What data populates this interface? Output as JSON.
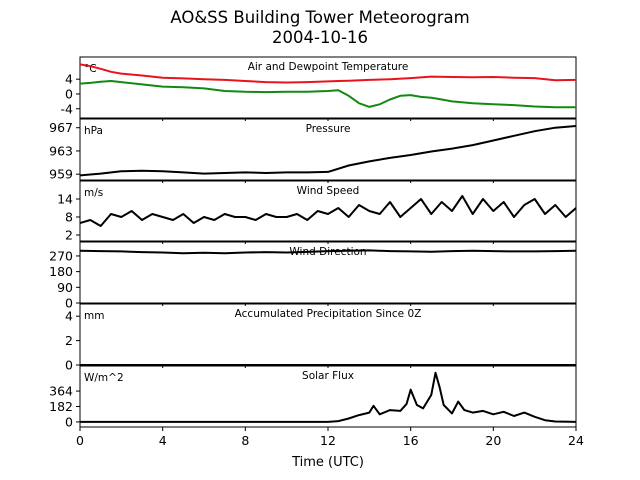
{
  "figure": {
    "title_line1": "AO&SS Building Tower Meteorogram",
    "title_line2": "2004-10-16",
    "xlabel": "Time (UTC)",
    "x_ticks": [
      "0",
      "4",
      "8",
      "12",
      "16",
      "20",
      "24"
    ]
  },
  "colors": {
    "temperature": "#e8141b",
    "dewpoint": "#128a12",
    "default_line": "#000000"
  },
  "chart_data": [
    {
      "type": "line",
      "title": "Air and Dewpoint Temperature",
      "unit_label": "°C",
      "xlim": [
        0,
        24
      ],
      "ylim": [
        -6.5,
        10
      ],
      "y_ticks": [
        4,
        0,
        -4
      ],
      "series": [
        {
          "name": "",
          "color": "#e8141b",
          "x": [
            0,
            0.5,
            1,
            1.5,
            2,
            3,
            4,
            5,
            6,
            7,
            8,
            9,
            10,
            11,
            12,
            12.5,
            13,
            14,
            15,
            16,
            17,
            18,
            19,
            20,
            21,
            22,
            23,
            24
          ],
          "y": [
            8,
            7.5,
            6.8,
            6,
            5.5,
            5,
            4.4,
            4.2,
            4,
            3.8,
            3.5,
            3.2,
            3.1,
            3.2,
            3.4,
            3.5,
            3.6,
            3.8,
            4,
            4.3,
            4.7,
            4.6,
            4.5,
            4.6,
            4.4,
            4.3,
            3.7,
            3.8
          ]
        },
        {
          "name": "",
          "color": "#128a12",
          "x": [
            0,
            0.5,
            1,
            1.5,
            2,
            3,
            4,
            5,
            6,
            7,
            8,
            9,
            10,
            11,
            12,
            12.5,
            13,
            13.5,
            14,
            14.5,
            15,
            15.5,
            16,
            16.5,
            17,
            17.5,
            18,
            19,
            20,
            21,
            22,
            23,
            24
          ],
          "y": [
            2.8,
            3,
            3.3,
            3.5,
            3.2,
            2.6,
            2,
            1.8,
            1.5,
            0.8,
            0.6,
            0.5,
            0.6,
            0.6,
            0.8,
            1,
            -0.5,
            -2.5,
            -3.5,
            -2.8,
            -1.5,
            -0.5,
            -0.3,
            -0.8,
            -1,
            -1.5,
            -2,
            -2.5,
            -2.8,
            -3,
            -3.4,
            -3.6,
            -3.6
          ]
        }
      ]
    },
    {
      "type": "line",
      "title": "Pressure",
      "unit_label": "hPa",
      "xlim": [
        0,
        24
      ],
      "ylim": [
        958,
        968.5
      ],
      "y_ticks": [
        967,
        963,
        959
      ],
      "series": [
        {
          "name": "",
          "color": "#000000",
          "x": [
            0,
            1,
            2,
            3,
            4,
            5,
            6,
            7,
            8,
            9,
            10,
            11,
            12,
            13,
            14,
            15,
            16,
            17,
            18,
            19,
            20,
            21,
            22,
            23,
            24
          ],
          "y": [
            958.8,
            959.1,
            959.5,
            959.6,
            959.5,
            959.3,
            959.1,
            959.2,
            959.3,
            959.2,
            959.3,
            959.3,
            959.4,
            960.5,
            961.2,
            961.8,
            962.3,
            962.9,
            963.4,
            964,
            964.8,
            965.6,
            966.4,
            967,
            967.3
          ]
        }
      ]
    },
    {
      "type": "line",
      "title": "Wind Speed",
      "unit_label": "m/s",
      "xlim": [
        0,
        24
      ],
      "ylim": [
        0,
        20
      ],
      "y_ticks": [
        14,
        8,
        2
      ],
      "series": [
        {
          "name": "",
          "color": "#000000",
          "x": [
            0,
            0.5,
            1,
            1.5,
            2,
            2.5,
            3,
            3.5,
            4,
            4.5,
            5,
            5.5,
            6,
            6.5,
            7,
            7.5,
            8,
            8.5,
            9,
            9.5,
            10,
            10.5,
            11,
            11.5,
            12,
            12.5,
            13,
            13.5,
            14,
            14.5,
            15,
            15.5,
            16,
            16.5,
            17,
            17.5,
            18,
            18.5,
            19,
            19.5,
            20,
            20.5,
            21,
            21.5,
            22,
            22.5,
            23,
            23.5,
            24
          ],
          "y": [
            6,
            7,
            5,
            9,
            8,
            10,
            7,
            9,
            8,
            7,
            9,
            6,
            8,
            7,
            9,
            8,
            8,
            7,
            9,
            8,
            8,
            9,
            7,
            10,
            9,
            11,
            8,
            12,
            10,
            9,
            13,
            8,
            11,
            14,
            9,
            13,
            10,
            15,
            9,
            14,
            10,
            13,
            8,
            12,
            14,
            9,
            12,
            8,
            11
          ]
        }
      ]
    },
    {
      "type": "line",
      "title": "Wind Direction",
      "unit_label": "",
      "xlim": [
        0,
        24
      ],
      "ylim": [
        0,
        350
      ],
      "y_ticks": [
        270,
        180,
        90,
        0
      ],
      "series": [
        {
          "name": "",
          "color": "#000000",
          "x": [
            0,
            1,
            2,
            3,
            4,
            5,
            6,
            7,
            8,
            9,
            10,
            11,
            12,
            13,
            14,
            15,
            16,
            17,
            18,
            19,
            20,
            21,
            22,
            23,
            24
          ],
          "y": [
            300,
            298,
            296,
            292,
            290,
            285,
            288,
            286,
            290,
            292,
            290,
            293,
            298,
            300,
            302,
            298,
            296,
            294,
            298,
            300,
            298,
            296,
            296,
            298,
            300
          ]
        }
      ]
    },
    {
      "type": "line",
      "title": "Accumulated Precipitation Since 0Z",
      "unit_label": "mm",
      "xlim": [
        0,
        24
      ],
      "ylim": [
        0,
        5
      ],
      "y_ticks": [
        4,
        2,
        0
      ],
      "series": [
        {
          "name": "",
          "color": "#000000",
          "x": [
            0,
            24
          ],
          "y": [
            0,
            0
          ]
        }
      ]
    },
    {
      "type": "line",
      "title": "Solar Flux",
      "unit_label": "W/m^2",
      "xlim": [
        0,
        24
      ],
      "ylim": [
        -60,
        660
      ],
      "y_ticks": [
        364,
        182,
        0
      ],
      "series": [
        {
          "name": "",
          "color": "#000000",
          "x": [
            0,
            12,
            12.5,
            13,
            13.5,
            14,
            14.2,
            14.5,
            15,
            15.5,
            15.8,
            16,
            16.3,
            16.6,
            17,
            17.2,
            17.4,
            17.6,
            18,
            18.3,
            18.6,
            19,
            19.5,
            20,
            20.5,
            21,
            21.5,
            22,
            22.5,
            23,
            24
          ],
          "y": [
            0,
            0,
            10,
            40,
            80,
            110,
            190,
            90,
            140,
            130,
            210,
            380,
            200,
            160,
            320,
            580,
            410,
            200,
            100,
            240,
            140,
            110,
            130,
            90,
            120,
            70,
            110,
            60,
            20,
            5,
            0
          ]
        }
      ]
    }
  ]
}
